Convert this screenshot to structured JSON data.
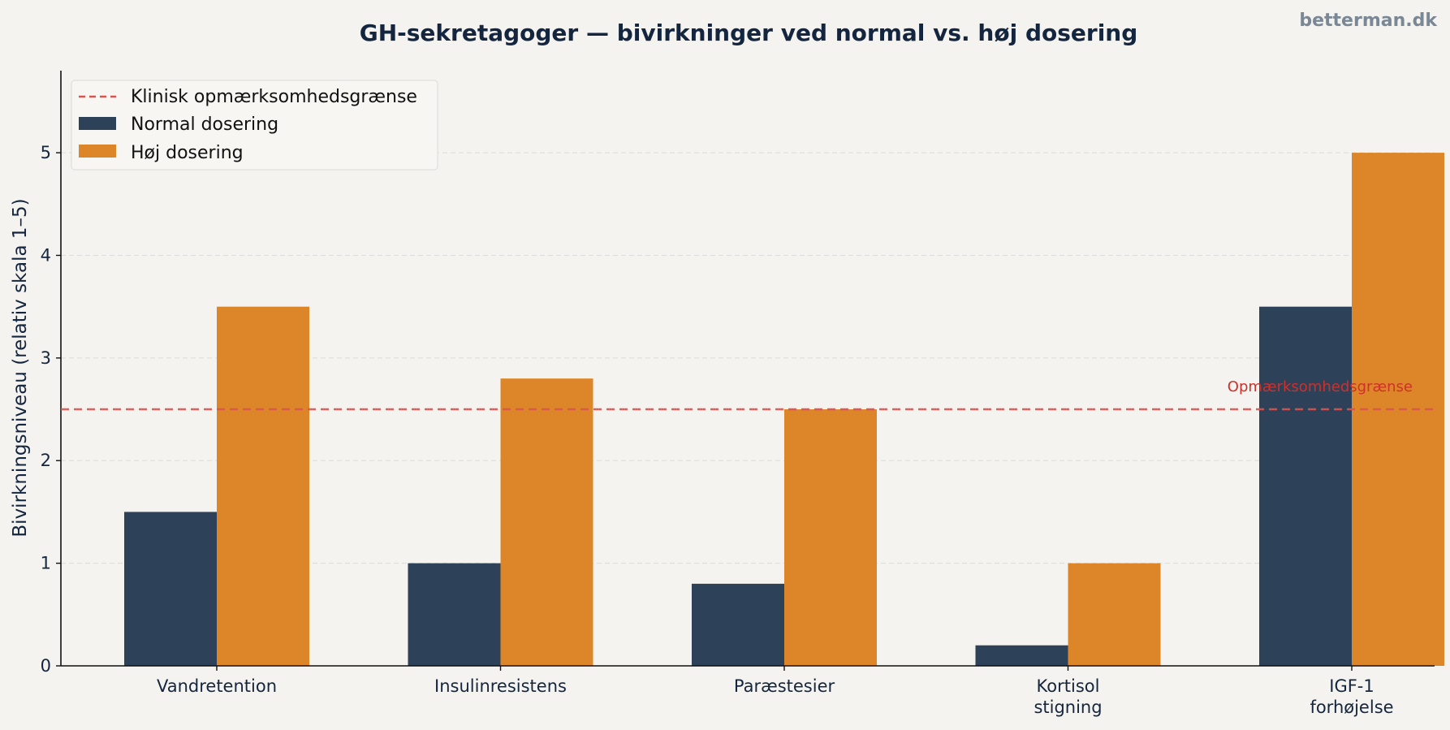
{
  "watermark": "betterman.dk",
  "colors": {
    "background": "#f5f3ef",
    "normal": "#2d4158",
    "high": "#dd8629",
    "threshold": "#d9534f",
    "threshold_label": "#d0302b",
    "text": "#14263f",
    "grid": "#dcdcdc"
  },
  "chart_data": {
    "type": "bar",
    "title": "GH-sekretagoger — bivirkninger ved normal vs. høj dosering",
    "xlabel": "",
    "ylabel": "Bivirkningsniveau (relativ skala 1–5)",
    "ylim": [
      0,
      5.8
    ],
    "yticks": [
      0,
      1,
      2,
      3,
      4,
      5
    ],
    "grid": true,
    "legend_position": "top-left",
    "categories": [
      [
        "Vandretention"
      ],
      [
        "Insulinresistens"
      ],
      [
        "Paræstesier"
      ],
      [
        "Kortisol",
        "stigning"
      ],
      [
        "IGF-1",
        "forhøjelse"
      ]
    ],
    "series": [
      {
        "name": "Normal dosering",
        "color": "#2d4158",
        "values": [
          1.5,
          1.0,
          0.8,
          0.2,
          3.5
        ]
      },
      {
        "name": "Høj dosering",
        "color": "#dd8629",
        "values": [
          3.5,
          2.8,
          2.5,
          1.0,
          5.0
        ]
      }
    ],
    "threshold": {
      "value": 2.5,
      "legend_label": "Klinisk opmærksomhedsgrænse",
      "annotation": "Opmærksomhedsgrænse"
    }
  }
}
